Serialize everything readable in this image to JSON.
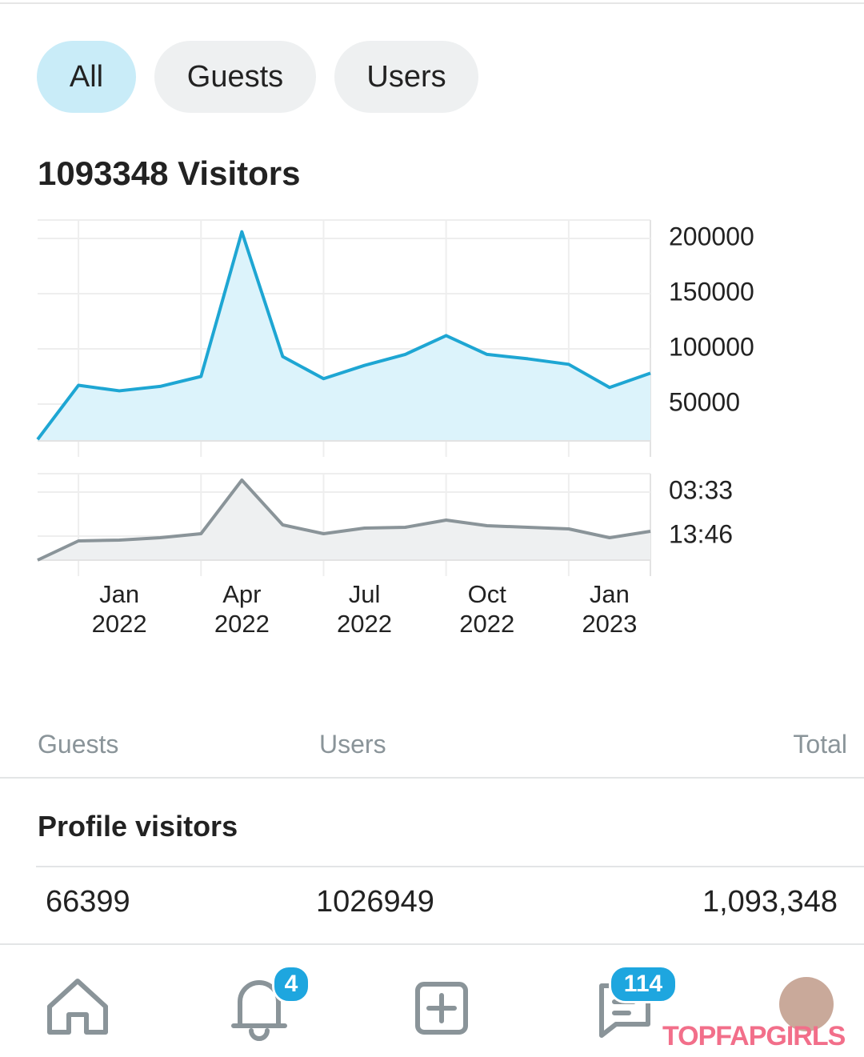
{
  "tabs": [
    "All",
    "Guests",
    "Users"
  ],
  "title": "1093348 Visitors",
  "visitors_chart": {
    "type": "line",
    "color": "#1ea6d3",
    "fill": "#dcf3fb",
    "categories": [
      null,
      null,
      "Jan 2022",
      null,
      null,
      "Apr 2022",
      null,
      null,
      "Jul 2022",
      null,
      null,
      "Oct 2022",
      null,
      null,
      "Jan 2023",
      null
    ],
    "values": [
      18000,
      67000,
      62000,
      66000,
      75000,
      206000,
      93000,
      73000,
      85000,
      95000,
      112000,
      95000,
      91000,
      86000,
      65000,
      78000
    ],
    "ylim": [
      16667,
      216667
    ],
    "yticks": [
      200000,
      150000,
      100000,
      50000
    ],
    "grid": true
  },
  "duration_chart": {
    "type": "line",
    "color": "#8a9499",
    "fill": "#eef0f1",
    "values": [
      0,
      24,
      25,
      28,
      33,
      100,
      44,
      33,
      40,
      41,
      50,
      43,
      41,
      39,
      28,
      36
    ],
    "ylim": [
      0,
      108
    ],
    "yticks": [
      {
        "value": 85,
        "label": "03:33"
      },
      {
        "value": 30,
        "label": "13:46"
      }
    ],
    "grid": true
  },
  "table": {
    "headers": [
      "Guests",
      "Users",
      "Total"
    ],
    "section": "Profile visitors",
    "row": [
      "66399",
      "1026949",
      "1,093,348"
    ]
  },
  "nav": {
    "badges": [
      "4",
      "114"
    ]
  },
  "watermark": "TOPFAPGIRLS"
}
